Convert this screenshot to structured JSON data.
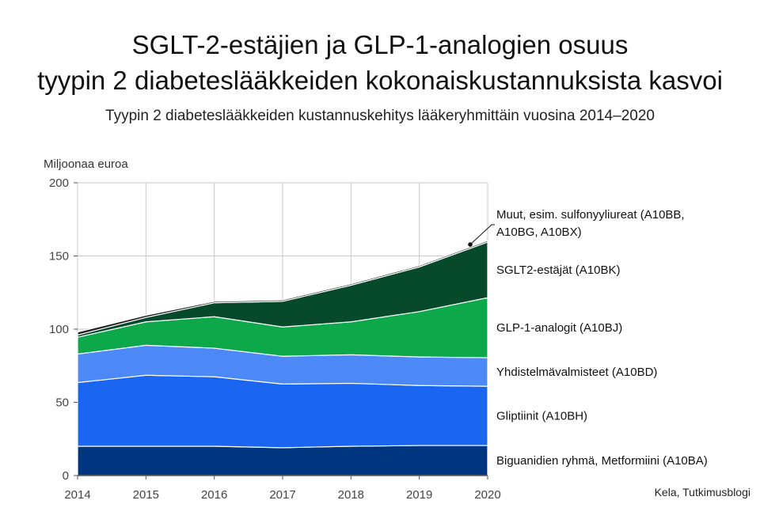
{
  "chart_data": {
    "type": "area",
    "stacked": true,
    "title_line1": "SGLT-2-estäjien ja GLP-1-analogien osuus",
    "title_line2": "tyypin 2 diabeteslääkkeiden kokonaiskustannuksista kasvoi",
    "subtitle": "Tyypin 2 diabeteslääkkeiden kustannuskehitys lääkeryhmittäin vuosina 2014–2020",
    "ylabel": "Miljoonaa euroa",
    "source": "Kela, Tutkimusblogi",
    "x": [
      "2014",
      "2015",
      "2016",
      "2017",
      "2018",
      "2019",
      "2020"
    ],
    "ylim": [
      0,
      200
    ],
    "yticks": [
      0,
      50,
      100,
      150,
      200
    ],
    "grid": true,
    "series": [
      {
        "name": "Biguanidien ryhmä, Metformiini (A10BA)",
        "color": "#003580",
        "values": [
          20,
          20,
          20,
          19,
          20,
          20.5,
          20.5
        ]
      },
      {
        "name": "Gliptiinit (A10BH)",
        "color": "#1a66f0",
        "values": [
          43.5,
          48.5,
          47.5,
          43.5,
          43,
          41,
          40.5
        ]
      },
      {
        "name": "Yhdistelmävalmisteet (A10BD)",
        "color": "#4d88f7",
        "values": [
          19.5,
          20.5,
          19.5,
          19,
          19.5,
          19.5,
          19.5
        ]
      },
      {
        "name": "GLP-1-analogit (A10BJ)",
        "color": "#0ca84a",
        "values": [
          11.5,
          16,
          21.5,
          20,
          22.5,
          31,
          41
        ]
      },
      {
        "name": "SGLT2-estäjät (A10BK)",
        "color": "#064a2b",
        "values": [
          1.5,
          3,
          9.5,
          17.5,
          25,
          30.5,
          38
        ]
      },
      {
        "name": "Muut, esim. sulfonyyliureat (A10BB, A10BG, A10BX)",
        "color": "#222222",
        "values": [
          2,
          1.5,
          1,
          1,
          1,
          1,
          1
        ]
      }
    ],
    "series_labels": [
      {
        "lines": [
          "Biguanidien ryhmä, Metformiini (A10BA)"
        ]
      },
      {
        "lines": [
          "Gliptiinit (A10BH)"
        ]
      },
      {
        "lines": [
          "Yhdistelmävalmisteet (A10BD)"
        ]
      },
      {
        "lines": [
          "GLP-1-analogit (A10BJ)"
        ]
      },
      {
        "lines": [
          "SGLT2-estäjät (A10BK)"
        ]
      },
      {
        "lines": [
          "Muut, esim. sulfonyyliureat (A10BB,",
          "A10BG, A10BX)"
        ]
      }
    ]
  }
}
